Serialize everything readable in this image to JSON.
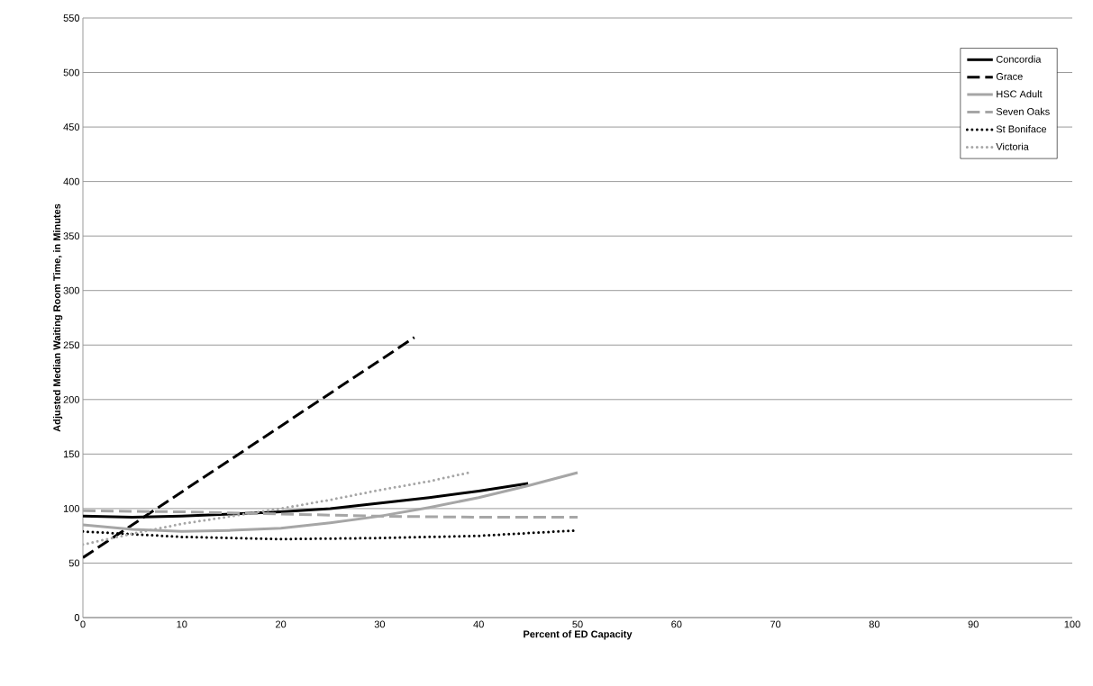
{
  "chart_data": {
    "type": "line",
    "xlabel": "Percent of ED Capacity",
    "ylabel": "Adjusted Median Waiting Room Time, in Minutes",
    "xlim": [
      0,
      100
    ],
    "xticks": [
      0,
      10,
      20,
      30,
      40,
      50,
      60,
      70,
      80,
      90,
      100
    ],
    "ylim": [
      0,
      550
    ],
    "yticks": [
      0,
      50,
      100,
      150,
      200,
      250,
      300,
      350,
      400,
      450,
      500,
      550
    ],
    "grid": "y",
    "legend": "top right",
    "marker": "none",
    "series": [
      {
        "name": "Concordia",
        "color": "#000000",
        "line_style": "solid",
        "x": [
          0,
          5,
          10,
          15,
          20,
          25,
          30,
          35,
          40,
          45
        ],
        "values": [
          93,
          92,
          93,
          95,
          97,
          100,
          105,
          110,
          116,
          123
        ]
      },
      {
        "name": "Grace",
        "color": "#000000",
        "line_style": "dashed",
        "x": [
          0,
          33.5
        ],
        "values": [
          55,
          257
        ]
      },
      {
        "name": "HSC Adult",
        "color": "#a6a6a6",
        "line_style": "solid",
        "x": [
          0,
          5,
          10,
          15,
          20,
          25,
          30,
          35,
          40,
          45,
          50
        ],
        "values": [
          85,
          81,
          79,
          80,
          82,
          87,
          93,
          101,
          110,
          121,
          133
        ]
      },
      {
        "name": "Seven Oaks",
        "color": "#a6a6a6",
        "line_style": "dashed",
        "x": [
          0,
          10,
          20,
          30,
          40,
          50
        ],
        "values": [
          98,
          97,
          95,
          93,
          92,
          92
        ]
      },
      {
        "name": "St Boniface",
        "color": "#000000",
        "line_style": "dotted",
        "x": [
          0,
          10,
          20,
          30,
          40,
          50
        ],
        "values": [
          79,
          74,
          72,
          73,
          75,
          80
        ]
      },
      {
        "name": "Victoria",
        "color": "#a6a6a6",
        "line_style": "dotted",
        "x": [
          0,
          5,
          10,
          15,
          20,
          25,
          30,
          35,
          39
        ],
        "values": [
          67,
          77,
          86,
          93,
          100,
          108,
          117,
          125,
          133
        ]
      }
    ]
  }
}
